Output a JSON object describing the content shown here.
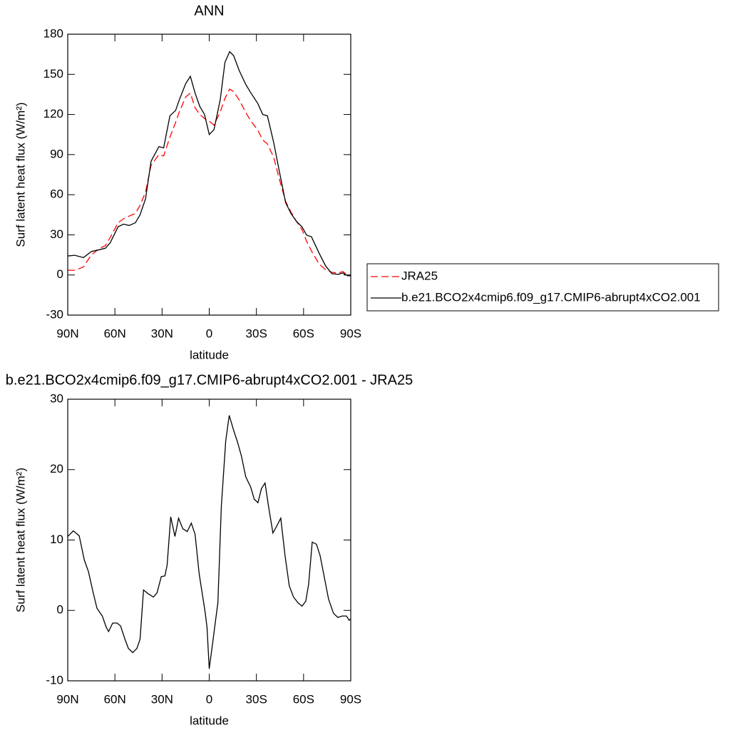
{
  "chart_data": [
    {
      "type": "line",
      "title": "ANN",
      "xlabel": "latitude",
      "ylabel": "Surf latent heat flux (W/m²)",
      "x": [
        90,
        85.5,
        80,
        75,
        69.5,
        66,
        63,
        58,
        54.5,
        51,
        47,
        44,
        40.5,
        37,
        32,
        29,
        25,
        21.4,
        19,
        15,
        12,
        9,
        6,
        3,
        0,
        -3,
        -7,
        -10,
        -13,
        -15.5,
        -19,
        -23,
        -26,
        -31,
        -34,
        -37,
        -41,
        -44.5,
        -48.6,
        -52,
        -55.5,
        -59,
        -62,
        -65,
        -70,
        -74,
        -78,
        -82,
        -85,
        -88,
        -90
      ],
      "series": [
        {
          "name": "JRA25",
          "color": "#ff0000",
          "dashed": true,
          "values": [
            3.5,
            3.5,
            6,
            15,
            20,
            22,
            28,
            39,
            42,
            44,
            46,
            52,
            62,
            82,
            90,
            89,
            103,
            114,
            122,
            133,
            136,
            125,
            120,
            117,
            115,
            112,
            122,
            132,
            139,
            137,
            131,
            122,
            116,
            108,
            101,
            98,
            88,
            72,
            55,
            47,
            40,
            34,
            25,
            18,
            8,
            4,
            2,
            1.5,
            2.5,
            0,
            0
          ]
        },
        {
          "name": "b.e21.BCO2x4cmip6.f09_g17.CMIP6-abrupt4xCO2.001",
          "color": "#000000",
          "dashed": false,
          "values": [
            14.2,
            14.7,
            13,
            17.5,
            19,
            20,
            24,
            36,
            38,
            37,
            39,
            45,
            57,
            85,
            96,
            95,
            119,
            123,
            131,
            143,
            148.5,
            136,
            126,
            120,
            105,
            108.6,
            131,
            159,
            167,
            164,
            153,
            143,
            137,
            128,
            120,
            119,
            99,
            78,
            54,
            46,
            40,
            36,
            29.7,
            28.6,
            16,
            6.8,
            1,
            0.5,
            1.5,
            -0.6,
            -0.6
          ]
        }
      ],
      "xlim": [
        90,
        -90
      ],
      "ylim": [
        -30,
        180
      ],
      "xticks": [
        {
          "value": 90,
          "label": "90N"
        },
        {
          "value": 60,
          "label": "60N"
        },
        {
          "value": 30,
          "label": "30N"
        },
        0,
        {
          "value": -30,
          "label": "30S"
        },
        {
          "value": -60,
          "label": "60S"
        },
        {
          "value": -90,
          "label": "90S"
        }
      ],
      "yticks": [
        -30,
        0,
        30,
        60,
        90,
        120,
        150,
        180
      ],
      "legend": "right"
    },
    {
      "type": "line",
      "title": "b.e21.BCO2x4cmip6.f09_g17.CMIP6-abrupt4xCO2.001 - JRA25",
      "xlabel": "latitude",
      "ylabel": "Surf latent heat flux (W/m²)",
      "x": [
        90,
        86.4,
        82.7,
        79.5,
        76.8,
        74,
        71.4,
        68,
        65.5,
        64,
        61.4,
        58.6,
        56.4,
        53.6,
        51.4,
        48.6,
        46,
        44,
        41.8,
        39,
        35.5,
        33.2,
        30.5,
        28.2,
        26.8,
        24.5,
        21.8,
        19.5,
        16.8,
        14,
        11.4,
        9,
        6.4,
        2.7,
        1.4,
        0,
        -2.3,
        -5.5,
        -7.7,
        -10.5,
        -12.7,
        -15.5,
        -18,
        -20.5,
        -23.2,
        -26.4,
        -28.6,
        -31,
        -33.2,
        -35.5,
        -37.7,
        -40.5,
        -43.2,
        -45.5,
        -48.2,
        -50.9,
        -53.6,
        -56.4,
        -59,
        -61.4,
        -63.2,
        -65.5,
        -68.2,
        -70.5,
        -73.2,
        -75.9,
        -79,
        -81.8,
        -84.5,
        -87.3,
        -89,
        -90
      ],
      "series": [
        {
          "color": "#000000",
          "dashed": false,
          "values": [
            10.5,
            11.3,
            10.6,
            7.2,
            5.5,
            2.7,
            0.3,
            -0.8,
            -2.4,
            -3,
            -1.8,
            -1.8,
            -2.2,
            -4.1,
            -5.4,
            -6,
            -5.4,
            -4.1,
            2.9,
            2.4,
            1.9,
            2.5,
            4.8,
            4.9,
            6.4,
            13.3,
            10.5,
            13.1,
            11.6,
            11.2,
            12.4,
            10.8,
            5.2,
            -0.1,
            -2.4,
            -8.3,
            -4.4,
            1.1,
            14.8,
            24.1,
            27.7,
            25.6,
            23.9,
            21.9,
            19,
            17.5,
            15.8,
            15.3,
            17.3,
            18.1,
            14.8,
            11,
            12.1,
            13.1,
            7.8,
            3.5,
            1.9,
            1.1,
            0.6,
            1.3,
            3.7,
            9.7,
            9.4,
            7.8,
            4.7,
            1.6,
            -0.4,
            -1,
            -0.8,
            -0.8,
            -1.4,
            -1.2
          ]
        }
      ],
      "xlim": [
        90,
        -90
      ],
      "ylim": [
        -10,
        30
      ],
      "xticks": [
        {
          "value": 90,
          "label": "90N"
        },
        {
          "value": 60,
          "label": "60N"
        },
        {
          "value": 30,
          "label": "30N"
        },
        0,
        {
          "value": -30,
          "label": "30S"
        },
        {
          "value": -60,
          "label": "60S"
        },
        {
          "value": -90,
          "label": "90S"
        }
      ],
      "yticks": [
        -10,
        0,
        10,
        20,
        30
      ]
    }
  ]
}
